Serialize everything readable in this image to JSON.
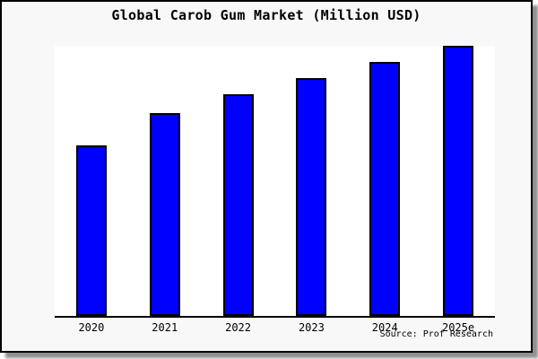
{
  "chart_data": {
    "type": "bar",
    "title": "Global Carob Gum Market (Million USD)",
    "categories": [
      "2020",
      "2021",
      "2022",
      "2023",
      "2024",
      "2025e"
    ],
    "values": [
      63,
      75,
      82,
      88,
      94,
      100
    ],
    "values_note": "no numeric y-axis shown; values estimated from bar heights relative to tallest bar = 100",
    "xlabel": "",
    "ylabel": "",
    "ylim": [
      0,
      100
    ],
    "grid": false,
    "legend": false,
    "source": "Source: Prof Research",
    "colors": {
      "bar_fill": "#0000FF",
      "bar_border": "#000000",
      "frame_background": "#F8F8F8",
      "plot_background": "#FFFFFF",
      "axis": "#000000",
      "text": "#000000"
    }
  }
}
